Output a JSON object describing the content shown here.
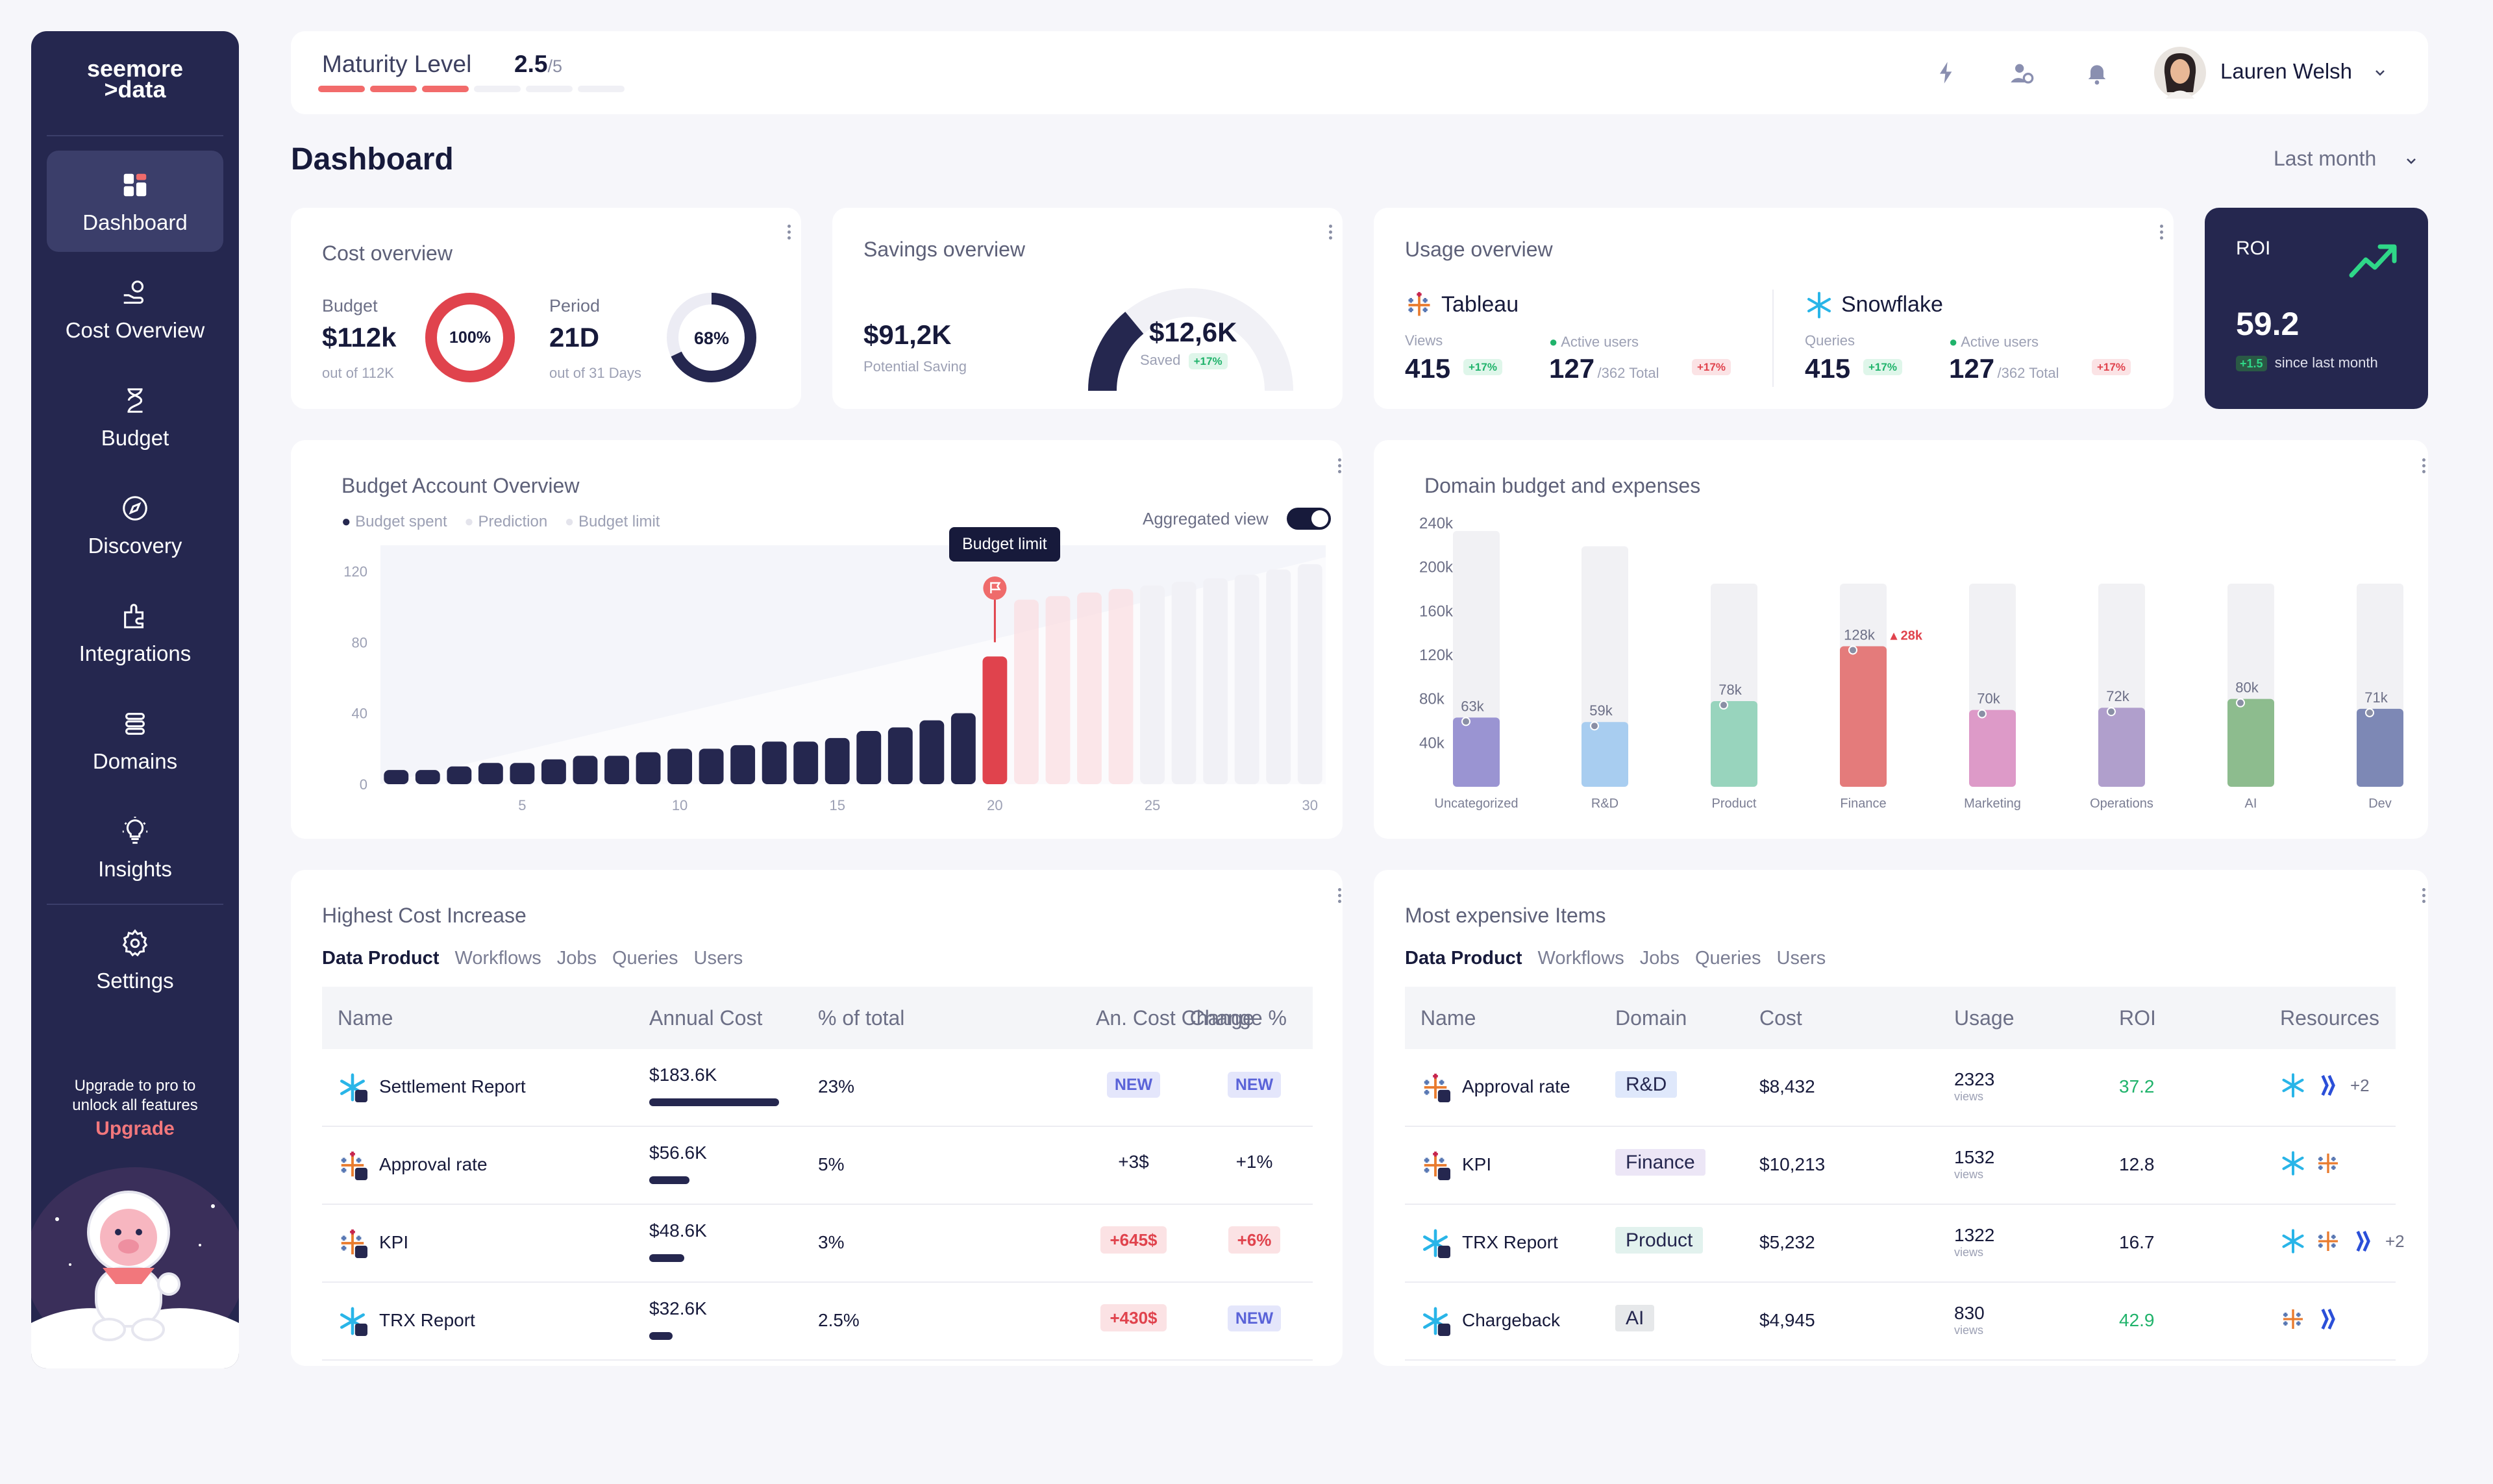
{
  "sidebar": {
    "logo_line1": "seemore",
    "logo_line2": ">data",
    "items": [
      {
        "label": "Dashboard",
        "icon": "dashboard-icon"
      },
      {
        "label": "Cost Overview",
        "icon": "cost-overview-icon"
      },
      {
        "label": "Budget",
        "icon": "budget-icon"
      },
      {
        "label": "Discovery",
        "icon": "compass-icon"
      },
      {
        "label": "Integrations",
        "icon": "integrations-icon"
      },
      {
        "label": "Domains",
        "icon": "domains-icon"
      },
      {
        "label": "Insights",
        "icon": "lightbulb-icon"
      },
      {
        "label": "Settings",
        "icon": "gear-icon"
      }
    ],
    "upgrade_line1": "Upgrade to pro to",
    "upgrade_line2": "unlock all features",
    "upgrade_link": "Upgrade"
  },
  "topbar": {
    "maturity_label": "Maturity Level",
    "maturity_value": "2.5",
    "maturity_max": "/5",
    "maturity_progress": 0.5,
    "user_name": "Lauren Welsh"
  },
  "page": {
    "title": "Dashboard",
    "period": "Last month"
  },
  "cost_overview": {
    "title": "Cost overview",
    "budget_label": "Budget",
    "budget_value": "$112k",
    "budget_sub": "out of 112K",
    "budget_pct": "100%",
    "budget_ratio": 1.0,
    "period_label": "Period",
    "period_value": "21D",
    "period_sub": "out of 31 Days",
    "period_pct": "68%",
    "period_ratio": 0.68
  },
  "savings": {
    "title": "Savings overview",
    "potential_value": "$91,2K",
    "potential_label": "Potential Saving",
    "saved_value": "$12,6K",
    "saved_label": "Saved",
    "saved_change": "+17%",
    "saved_ratio": 0.2
  },
  "usage": {
    "title": "Usage overview",
    "tableau": {
      "name": "Tableau",
      "views_label": "Views",
      "views": "415",
      "views_change": "+17%",
      "users_label": "Active users",
      "users": "127",
      "users_total": "/362 Total",
      "users_change": "+17%"
    },
    "snowflake": {
      "name": "Snowflake",
      "queries_label": "Queries",
      "queries": "415",
      "queries_change": "+17%",
      "users_label": "Active users",
      "users": "127",
      "users_total": "/362 Total",
      "users_change": "+17%"
    }
  },
  "roi": {
    "label": "ROI",
    "value": "59.2",
    "change": "+1.5",
    "since": "since last month"
  },
  "budget_account": {
    "title": "Budget Account Overview",
    "legend": [
      "Budget spent",
      "Prediction",
      "Budget limit"
    ],
    "toggle_label": "Aggregated view",
    "tooltip": "Budget limit"
  },
  "domain_budget": {
    "title": "Domain budget and expenses"
  },
  "highest_cost": {
    "title": "Highest Cost  Increase",
    "tabs": [
      "Data Product",
      "Workflows",
      "Jobs",
      "Queries",
      "Users"
    ],
    "headers": [
      "Name",
      "Annual Cost",
      "% of total",
      "An. Cost Change",
      "Change %"
    ],
    "rows": [
      {
        "name": "Settlement Report",
        "cost": "$183.6K",
        "pct": "23%",
        "change": "NEW",
        "change_pct": "NEW",
        "bar": 1.0,
        "icon": "snowflake-icon"
      },
      {
        "name": "Approval rate",
        "cost": "$56.6K",
        "pct": "5%",
        "change": "+3$",
        "change_pct": "+1%",
        "bar": 0.31,
        "icon": "tableau-icon"
      },
      {
        "name": "KPI",
        "cost": "$48.6K",
        "pct": "3%",
        "change": "+645$",
        "change_pct": "+6%",
        "bar": 0.27,
        "icon": "tableau-icon"
      },
      {
        "name": "TRX Report",
        "cost": "$32.6K",
        "pct": "2.5%",
        "change": "+430$",
        "change_pct": "NEW",
        "bar": 0.18,
        "icon": "snowflake-icon"
      }
    ]
  },
  "expensive_items": {
    "title": "Most expensive Items",
    "tabs": [
      "Data Product",
      "Workflows",
      "Jobs",
      "Queries",
      "Users"
    ],
    "headers": [
      "Name",
      "Domain",
      "Cost",
      "Usage",
      "ROI",
      "Resources"
    ],
    "usage_unit": "views",
    "rows": [
      {
        "name": "Approval rate",
        "domain": "R&D",
        "cost": "$8,432",
        "usage": "2323",
        "roi": "37.2",
        "roi_color": "#20b36b",
        "extra": "+2",
        "domain_bg": "#dfe8fb",
        "icon": "tableau-icon"
      },
      {
        "name": "KPI",
        "domain": "Finance",
        "cost": "$10,213",
        "usage": "1532",
        "roi": "12.8",
        "roi_color": "#171a3b",
        "extra": "",
        "domain_bg": "#ece6f6",
        "icon": "tableau-icon"
      },
      {
        "name": "TRX Report",
        "domain": "Product",
        "cost": "$5,232",
        "usage": "1322",
        "roi": "16.7",
        "roi_color": "#171a3b",
        "extra": "+2",
        "domain_bg": "#e2f2ee",
        "icon": "snowflake-icon"
      },
      {
        "name": "Chargeback",
        "domain": "AI",
        "cost": "$4,945",
        "usage": "830",
        "roi": "42.9",
        "roi_color": "#20b36b",
        "extra": "",
        "domain_bg": "#e6e8ea",
        "icon": "snowflake-icon"
      }
    ]
  },
  "chart_data": [
    {
      "type": "bar",
      "title": "Budget Account Overview",
      "x_ticks": [
        "5",
        "10",
        "15",
        "20",
        "25",
        "30"
      ],
      "y_ticks": [
        "0",
        "40",
        "80",
        "120"
      ],
      "ylim": [
        0,
        130
      ],
      "series": [
        {
          "name": "Budget spent",
          "x": [
            1,
            2,
            3,
            4,
            5,
            6,
            7,
            8,
            9,
            10,
            11,
            12,
            13,
            14,
            15,
            16,
            17,
            18,
            19,
            20
          ],
          "values": [
            8,
            8,
            10,
            12,
            12,
            14,
            16,
            16,
            18,
            20,
            20,
            22,
            24,
            24,
            26,
            30,
            32,
            36,
            40,
            72
          ]
        },
        {
          "name": "Prediction",
          "x": [
            21,
            22,
            23,
            24,
            25,
            26,
            27,
            28,
            29,
            30
          ],
          "values": [
            104,
            106,
            108,
            110,
            112,
            114,
            116,
            118,
            121,
            124
          ]
        }
      ],
      "budget_limit_day": 21,
      "budget_limit_value": 80
    },
    {
      "type": "bar",
      "title": "Domain budget and expenses",
      "y_ticks": [
        "40k",
        "80k",
        "120k",
        "160k",
        "200k",
        "240k"
      ],
      "categories": [
        "Uncategorized",
        "R&D",
        "Product",
        "Finance",
        "Marketing",
        "Operations",
        "AI",
        "Dev"
      ],
      "ylim": [
        0,
        240
      ],
      "series": [
        {
          "name": "Budget",
          "values": [
            233,
            219,
            185,
            185,
            185,
            185,
            185,
            185
          ]
        },
        {
          "name": "Expenses",
          "values": [
            63,
            59,
            78,
            128,
            70,
            72,
            80,
            71
          ]
        }
      ],
      "value_labels": [
        "63k",
        "59k",
        "78k",
        "128k",
        "70k",
        "72k",
        "80k",
        "71k"
      ],
      "overrun_label": "28k",
      "colors": [
        "#9a94d2",
        "#a8cdf0",
        "#98d4bd",
        "#e47b7b",
        "#dd9ac8",
        "#b09fcc",
        "#8dbc8e",
        "#7d88b5"
      ]
    }
  ]
}
